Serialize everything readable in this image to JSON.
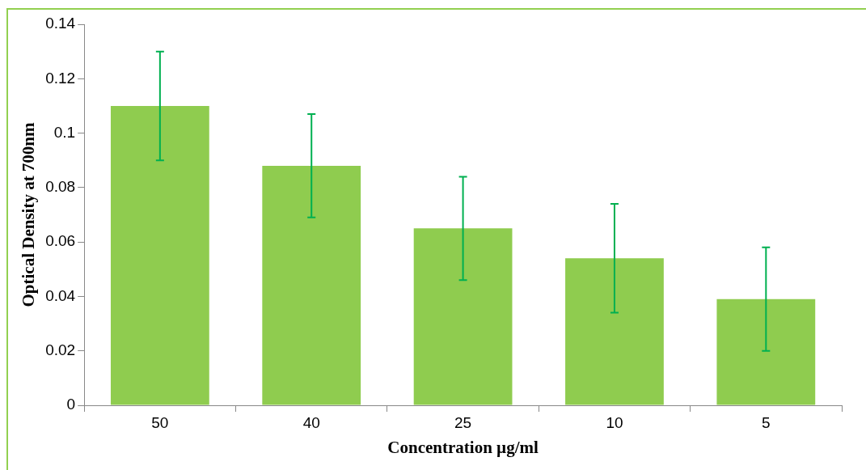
{
  "chart_data": {
    "type": "bar",
    "xlabel": "Concentration µg/ml",
    "ylabel": "Optical Density at 700nm",
    "categories": [
      "50",
      "40",
      "25",
      "10",
      "5"
    ],
    "values": [
      0.11,
      0.088,
      0.065,
      0.054,
      0.039
    ],
    "errors": [
      0.02,
      0.019,
      0.019,
      0.02,
      0.019
    ],
    "color": "#8fcc4f",
    "ylim": [
      0,
      0.14
    ],
    "yticks": [
      0,
      0.02,
      0.04,
      0.06,
      0.08,
      0.1,
      0.12,
      0.14
    ],
    "legend": false
  }
}
